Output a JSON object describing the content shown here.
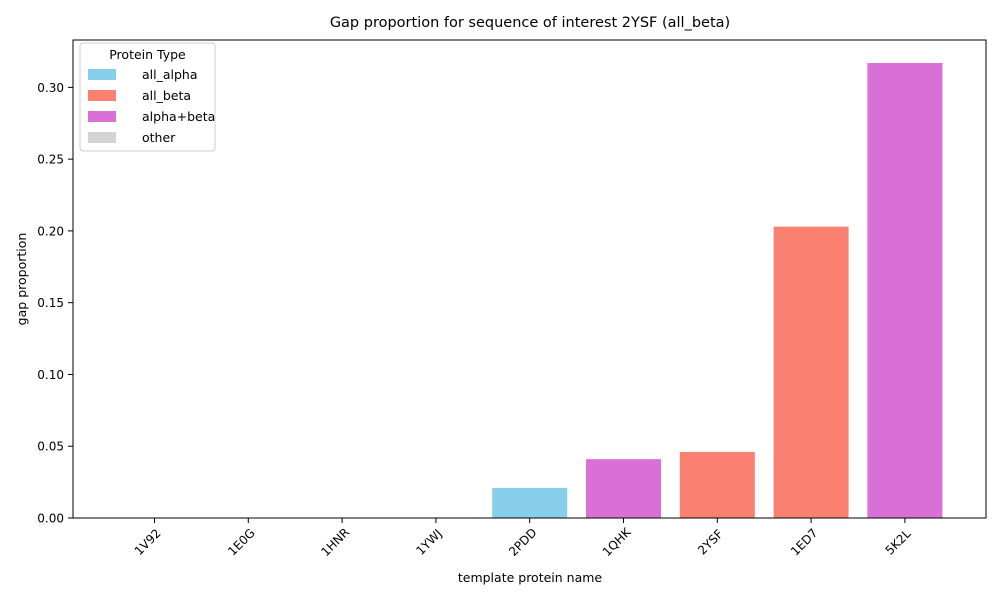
{
  "chart_data": {
    "type": "bar",
    "title": "Gap proportion for sequence of interest 2YSF (all_beta)",
    "xlabel": "template protein name",
    "ylabel": "gap proportion",
    "categories": [
      "1V92",
      "1E0G",
      "1HNR",
      "1YWJ",
      "2PDD",
      "1QHK",
      "2YSF",
      "1ED7",
      "5K2L"
    ],
    "values": [
      0.0,
      0.0,
      0.0,
      0.0,
      0.021,
      0.041,
      0.046,
      0.203,
      0.317
    ],
    "bar_types": [
      "all_alpha",
      "all_beta",
      "other",
      "other",
      "all_alpha",
      "alpha+beta",
      "all_beta",
      "all_beta",
      "alpha+beta"
    ],
    "ylim": [
      0,
      0.333
    ],
    "yticks": [
      0.0,
      0.05,
      0.1,
      0.15,
      0.2,
      0.25,
      0.3
    ],
    "ytick_labels": [
      "0.00",
      "0.05",
      "0.10",
      "0.15",
      "0.20",
      "0.25",
      "0.30"
    ],
    "grid": false,
    "legend": {
      "title": "Protein Type",
      "placement": "top-left",
      "entries": [
        {
          "label": "all_alpha",
          "color": "#87ceeb"
        },
        {
          "label": "all_beta",
          "color": "#fa8072"
        },
        {
          "label": "alpha+beta",
          "color": "#da70d6"
        },
        {
          "label": "other",
          "color": "#d3d3d3"
        }
      ]
    }
  }
}
